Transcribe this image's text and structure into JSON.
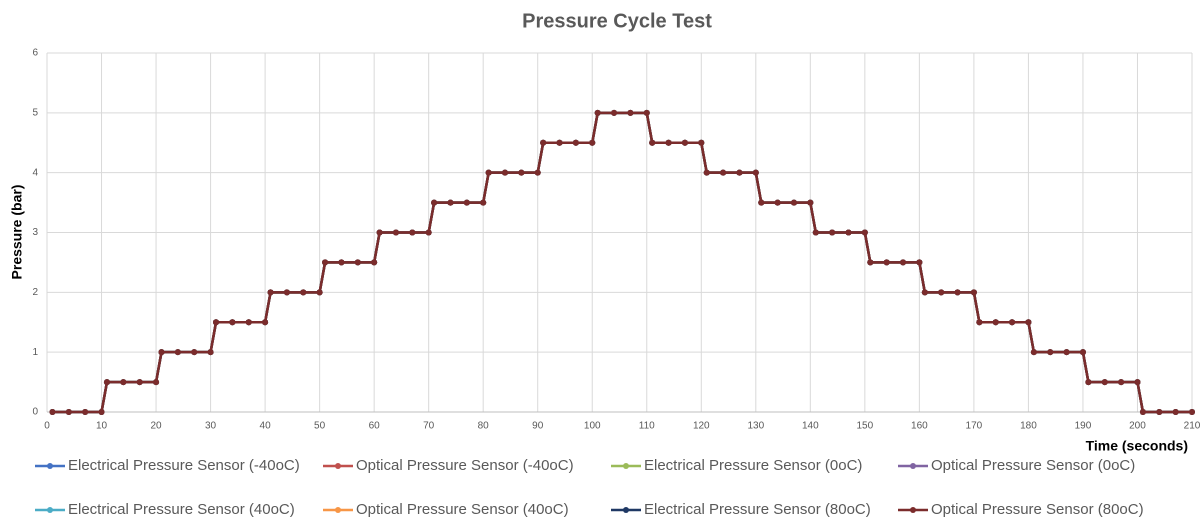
{
  "chart_data": {
    "type": "line",
    "title": "Pressure Cycle Test",
    "x_label": "Time (seconds)",
    "y_label": "Pressure (bar)",
    "x": [
      1,
      4,
      7,
      10,
      11,
      14,
      17,
      20,
      21,
      24,
      27,
      30,
      31,
      34,
      37,
      40,
      41,
      44,
      47,
      50,
      51,
      54,
      57,
      60,
      61,
      64,
      67,
      70,
      71,
      74,
      77,
      80,
      81,
      84,
      87,
      90,
      91,
      94,
      97,
      100,
      101,
      104,
      107,
      110,
      111,
      114,
      117,
      120,
      121,
      124,
      127,
      130,
      131,
      134,
      137,
      140,
      141,
      144,
      147,
      150,
      151,
      154,
      157,
      160,
      161,
      164,
      167,
      170,
      171,
      174,
      177,
      180,
      181,
      184,
      187,
      190,
      191,
      194,
      197,
      200,
      201,
      204,
      207,
      210
    ],
    "series": [
      {
        "name": "Electrical Pressure Sensor (-40oC)",
        "color": "#4472c4",
        "values": [
          0,
          0,
          0,
          0,
          0.5,
          0.5,
          0.5,
          0.5,
          1,
          1,
          1,
          1,
          1.5,
          1.5,
          1.5,
          1.5,
          2,
          2,
          2,
          2,
          2.5,
          2.5,
          2.5,
          2.5,
          3,
          3,
          3,
          3,
          3.5,
          3.5,
          3.5,
          3.5,
          4,
          4,
          4,
          4,
          4.5,
          4.5,
          4.5,
          4.5,
          5,
          5,
          5,
          5,
          4.5,
          4.5,
          4.5,
          4.5,
          4,
          4,
          4,
          4,
          3.5,
          3.5,
          3.5,
          3.5,
          3,
          3,
          3,
          3,
          2.5,
          2.5,
          2.5,
          2.5,
          2,
          2,
          2,
          2,
          1.5,
          1.5,
          1.5,
          1.5,
          1,
          1,
          1,
          1,
          0.5,
          0.5,
          0.5,
          0.5,
          0,
          0,
          0,
          0
        ]
      },
      {
        "name": "Optical Pressure Sensor (-40oC)",
        "color": "#c0504d",
        "values": [
          0,
          0,
          0,
          0,
          0.5,
          0.5,
          0.5,
          0.5,
          1,
          1,
          1,
          1,
          1.5,
          1.5,
          1.5,
          1.5,
          2,
          2,
          2,
          2,
          2.5,
          2.5,
          2.5,
          2.5,
          3,
          3,
          3,
          3,
          3.5,
          3.5,
          3.5,
          3.5,
          4,
          4,
          4,
          4,
          4.5,
          4.5,
          4.5,
          4.5,
          5,
          5,
          5,
          5,
          4.5,
          4.5,
          4.5,
          4.5,
          4,
          4,
          4,
          4,
          3.5,
          3.5,
          3.5,
          3.5,
          3,
          3,
          3,
          3,
          2.5,
          2.5,
          2.5,
          2.5,
          2,
          2,
          2,
          2,
          1.5,
          1.5,
          1.5,
          1.5,
          1,
          1,
          1,
          1,
          0.5,
          0.5,
          0.5,
          0.5,
          0,
          0,
          0,
          0
        ]
      },
      {
        "name": "Electrical Pressure Sensor (0oC)",
        "color": "#9bbb59",
        "values": [
          0,
          0,
          0,
          0,
          0.5,
          0.5,
          0.5,
          0.5,
          1,
          1,
          1,
          1,
          1.5,
          1.5,
          1.5,
          1.5,
          2,
          2,
          2,
          2,
          2.5,
          2.5,
          2.5,
          2.5,
          3,
          3,
          3,
          3,
          3.5,
          3.5,
          3.5,
          3.5,
          4,
          4,
          4,
          4,
          4.5,
          4.5,
          4.5,
          4.5,
          5,
          5,
          5,
          5,
          4.5,
          4.5,
          4.5,
          4.5,
          4,
          4,
          4,
          4,
          3.5,
          3.5,
          3.5,
          3.5,
          3,
          3,
          3,
          3,
          2.5,
          2.5,
          2.5,
          2.5,
          2,
          2,
          2,
          2,
          1.5,
          1.5,
          1.5,
          1.5,
          1,
          1,
          1,
          1,
          0.5,
          0.5,
          0.5,
          0.5,
          0,
          0,
          0,
          0
        ]
      },
      {
        "name": "Optical Pressure Sensor (0oC)",
        "color": "#8064a2",
        "values": [
          0,
          0,
          0,
          0,
          0.5,
          0.5,
          0.5,
          0.5,
          1,
          1,
          1,
          1,
          1.5,
          1.5,
          1.5,
          1.5,
          2,
          2,
          2,
          2,
          2.5,
          2.5,
          2.5,
          2.5,
          3,
          3,
          3,
          3,
          3.5,
          3.5,
          3.5,
          3.5,
          4,
          4,
          4,
          4,
          4.5,
          4.5,
          4.5,
          4.5,
          5,
          5,
          5,
          5,
          4.5,
          4.5,
          4.5,
          4.5,
          4,
          4,
          4,
          4,
          3.5,
          3.5,
          3.5,
          3.5,
          3,
          3,
          3,
          3,
          2.5,
          2.5,
          2.5,
          2.5,
          2,
          2,
          2,
          2,
          1.5,
          1.5,
          1.5,
          1.5,
          1,
          1,
          1,
          1,
          0.5,
          0.5,
          0.5,
          0.5,
          0,
          0,
          0,
          0
        ]
      },
      {
        "name": "Electrical Pressure Sensor (40oC)",
        "color": "#4bacc6",
        "values": [
          0,
          0,
          0,
          0,
          0.5,
          0.5,
          0.5,
          0.5,
          1,
          1,
          1,
          1,
          1.5,
          1.5,
          1.5,
          1.5,
          2,
          2,
          2,
          2,
          2.5,
          2.5,
          2.5,
          2.5,
          3,
          3,
          3,
          3,
          3.5,
          3.5,
          3.5,
          3.5,
          4,
          4,
          4,
          4,
          4.5,
          4.5,
          4.5,
          4.5,
          5,
          5,
          5,
          5,
          4.5,
          4.5,
          4.5,
          4.5,
          4,
          4,
          4,
          4,
          3.5,
          3.5,
          3.5,
          3.5,
          3,
          3,
          3,
          3,
          2.5,
          2.5,
          2.5,
          2.5,
          2,
          2,
          2,
          2,
          1.5,
          1.5,
          1.5,
          1.5,
          1,
          1,
          1,
          1,
          0.5,
          0.5,
          0.5,
          0.5,
          0,
          0,
          0,
          0
        ]
      },
      {
        "name": "Optical Pressure Sensor (40oC)",
        "color": "#f79646",
        "values": [
          0,
          0,
          0,
          0,
          0.5,
          0.5,
          0.5,
          0.5,
          1,
          1,
          1,
          1,
          1.5,
          1.5,
          1.5,
          1.5,
          2,
          2,
          2,
          2,
          2.5,
          2.5,
          2.5,
          2.5,
          3,
          3,
          3,
          3,
          3.5,
          3.5,
          3.5,
          3.5,
          4,
          4,
          4,
          4,
          4.5,
          4.5,
          4.5,
          4.5,
          5,
          5,
          5,
          5,
          4.5,
          4.5,
          4.5,
          4.5,
          4,
          4,
          4,
          4,
          3.5,
          3.5,
          3.5,
          3.5,
          3,
          3,
          3,
          3,
          2.5,
          2.5,
          2.5,
          2.5,
          2,
          2,
          2,
          2,
          1.5,
          1.5,
          1.5,
          1.5,
          1,
          1,
          1,
          1,
          0.5,
          0.5,
          0.5,
          0.5,
          0,
          0,
          0,
          0
        ]
      },
      {
        "name": "Electrical Pressure Sensor (80oC)",
        "color": "#1f3864",
        "values": [
          0,
          0,
          0,
          0,
          0.5,
          0.5,
          0.5,
          0.5,
          1,
          1,
          1,
          1,
          1.5,
          1.5,
          1.5,
          1.5,
          2,
          2,
          2,
          2,
          2.5,
          2.5,
          2.5,
          2.5,
          3,
          3,
          3,
          3,
          3.5,
          3.5,
          3.5,
          3.5,
          4,
          4,
          4,
          4,
          4.5,
          4.5,
          4.5,
          4.5,
          5,
          5,
          5,
          5,
          4.5,
          4.5,
          4.5,
          4.5,
          4,
          4,
          4,
          4,
          3.5,
          3.5,
          3.5,
          3.5,
          3,
          3,
          3,
          3,
          2.5,
          2.5,
          2.5,
          2.5,
          2,
          2,
          2,
          2,
          1.5,
          1.5,
          1.5,
          1.5,
          1,
          1,
          1,
          1,
          0.5,
          0.5,
          0.5,
          0.5,
          0,
          0,
          0,
          0
        ]
      },
      {
        "name": "Optical Pressure Sensor (80oC)",
        "color": "#7b2c2c",
        "values": [
          0,
          0,
          0,
          0,
          0.5,
          0.5,
          0.5,
          0.5,
          1,
          1,
          1,
          1,
          1.5,
          1.5,
          1.5,
          1.5,
          2,
          2,
          2,
          2,
          2.5,
          2.5,
          2.5,
          2.5,
          3,
          3,
          3,
          3,
          3.5,
          3.5,
          3.5,
          3.5,
          4,
          4,
          4,
          4,
          4.5,
          4.5,
          4.5,
          4.5,
          5,
          5,
          5,
          5,
          4.5,
          4.5,
          4.5,
          4.5,
          4,
          4,
          4,
          4,
          3.5,
          3.5,
          3.5,
          3.5,
          3,
          3,
          3,
          3,
          2.5,
          2.5,
          2.5,
          2.5,
          2,
          2,
          2,
          2,
          1.5,
          1.5,
          1.5,
          1.5,
          1,
          1,
          1,
          1,
          0.5,
          0.5,
          0.5,
          0.5,
          0,
          0,
          0,
          0
        ]
      }
    ],
    "xlim": [
      0,
      210
    ],
    "xticks": [
      0,
      10,
      20,
      30,
      40,
      50,
      60,
      70,
      80,
      90,
      100,
      110,
      120,
      130,
      140,
      150,
      160,
      170,
      180,
      190,
      200,
      210
    ],
    "ylim": [
      0,
      6
    ],
    "yticks": [
      0,
      1,
      2,
      3,
      4,
      5,
      6
    ],
    "grid": true,
    "legend": "bottom"
  }
}
